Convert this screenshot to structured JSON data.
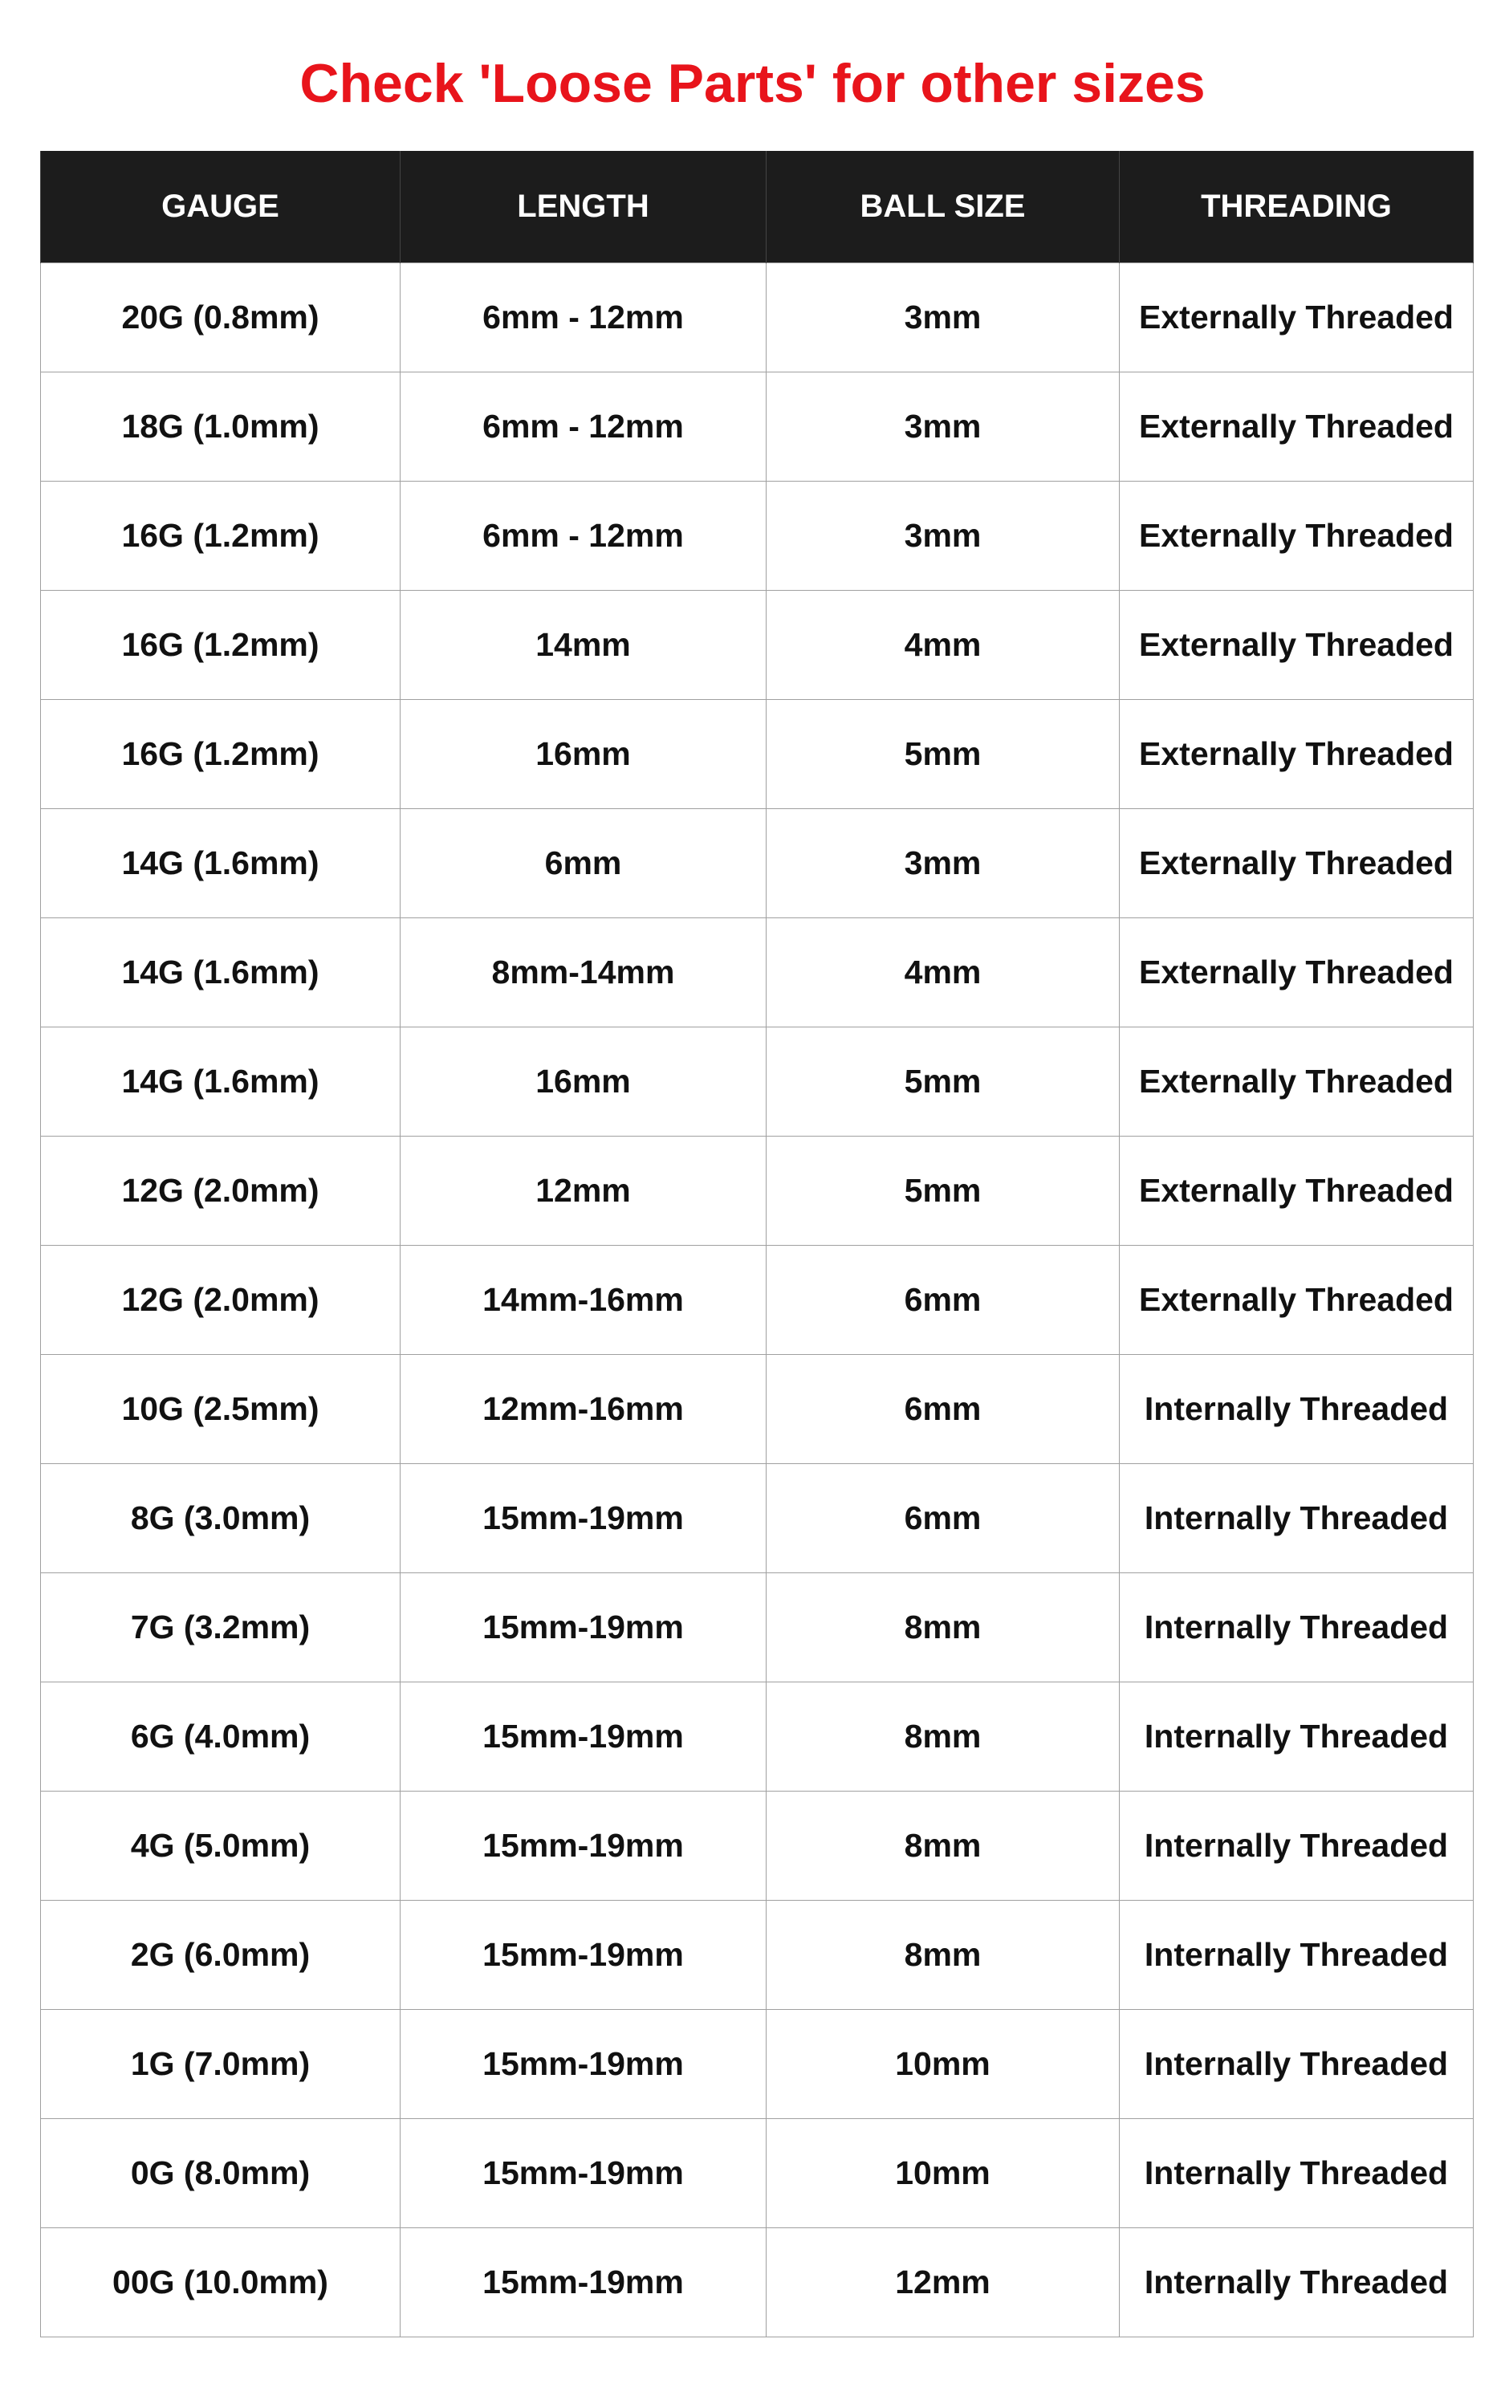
{
  "title": "Check 'Loose Parts' for other sizes",
  "colors": {
    "title": "#e8141b",
    "header_bg": "#1c1c1c"
  },
  "table": {
    "headers": [
      "GAUGE",
      "LENGTH",
      "BALL SIZE",
      "THREADING"
    ],
    "rows": [
      [
        "20G (0.8mm)",
        "6mm - 12mm",
        "3mm",
        "Externally Threaded"
      ],
      [
        "18G (1.0mm)",
        "6mm - 12mm",
        "3mm",
        "Externally Threaded"
      ],
      [
        "16G (1.2mm)",
        "6mm - 12mm",
        "3mm",
        "Externally Threaded"
      ],
      [
        "16G (1.2mm)",
        "14mm",
        "4mm",
        "Externally Threaded"
      ],
      [
        "16G (1.2mm)",
        "16mm",
        "5mm",
        "Externally Threaded"
      ],
      [
        "14G (1.6mm)",
        "6mm",
        "3mm",
        "Externally Threaded"
      ],
      [
        "14G (1.6mm)",
        "8mm-14mm",
        "4mm",
        "Externally Threaded"
      ],
      [
        "14G (1.6mm)",
        "16mm",
        "5mm",
        "Externally Threaded"
      ],
      [
        "12G (2.0mm)",
        "12mm",
        "5mm",
        "Externally Threaded"
      ],
      [
        "12G (2.0mm)",
        "14mm-16mm",
        "6mm",
        "Externally Threaded"
      ],
      [
        "10G (2.5mm)",
        "12mm-16mm",
        "6mm",
        "Internally Threaded"
      ],
      [
        "8G (3.0mm)",
        "15mm-19mm",
        "6mm",
        "Internally Threaded"
      ],
      [
        "7G (3.2mm)",
        "15mm-19mm",
        "8mm",
        "Internally Threaded"
      ],
      [
        "6G (4.0mm)",
        "15mm-19mm",
        "8mm",
        "Internally Threaded"
      ],
      [
        "4G (5.0mm)",
        "15mm-19mm",
        "8mm",
        "Internally Threaded"
      ],
      [
        "2G (6.0mm)",
        "15mm-19mm",
        "8mm",
        "Internally Threaded"
      ],
      [
        "1G (7.0mm)",
        "15mm-19mm",
        "10mm",
        "Internally Threaded"
      ],
      [
        "0G (8.0mm)",
        "15mm-19mm",
        "10mm",
        "Internally Threaded"
      ],
      [
        "00G (10.0mm)",
        "15mm-19mm",
        "12mm",
        "Internally Threaded"
      ]
    ]
  }
}
